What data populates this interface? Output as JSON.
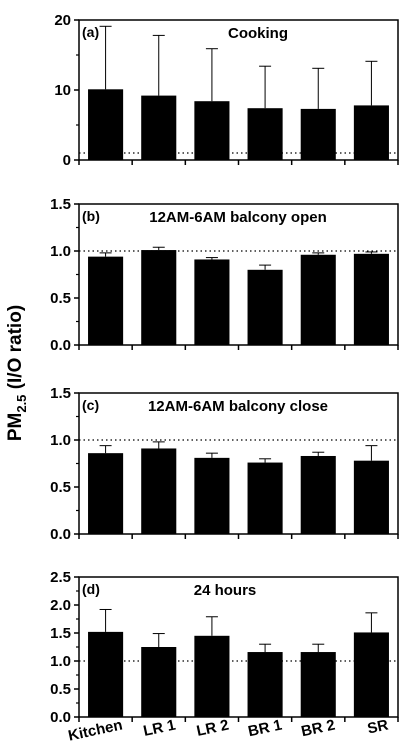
{
  "y_axis_label": {
    "prefix": "PM",
    "subscript": "2.5",
    "suffix": " (I/O ratio)"
  },
  "chart_data": [
    {
      "type": "bar",
      "panel_label": "(a)",
      "title": "Cooking",
      "categories": [
        "Kitchen",
        "LR 1",
        "LR 2",
        "BR 1",
        "BR 2",
        "SR"
      ],
      "values": [
        10.1,
        9.2,
        8.4,
        7.4,
        7.3,
        7.8
      ],
      "error_upper": [
        9.0,
        8.6,
        7.5,
        6.0,
        5.8,
        6.3
      ],
      "ylim": [
        0,
        20
      ],
      "yticks": [
        "0",
        "10",
        "20"
      ],
      "reference_line": 1
    },
    {
      "type": "bar",
      "panel_label": "(b)",
      "title": "12AM-6AM balcony open",
      "categories": [
        "Kitchen",
        "LR 1",
        "LR 2",
        "BR 1",
        "BR 2",
        "SR"
      ],
      "values": [
        0.94,
        1.01,
        0.91,
        0.8,
        0.96,
        0.97
      ],
      "error_upper": [
        0.04,
        0.03,
        0.02,
        0.05,
        0.02,
        0.02
      ],
      "ylim": [
        0,
        1.5
      ],
      "yticks": [
        "0.0",
        "0.5",
        "1.0",
        "1.5"
      ],
      "reference_line": 1
    },
    {
      "type": "bar",
      "panel_label": "(c)",
      "title": "12AM-6AM balcony close",
      "categories": [
        "Kitchen",
        "LR 1",
        "LR 2",
        "BR 1",
        "BR 2",
        "SR"
      ],
      "values": [
        0.86,
        0.91,
        0.81,
        0.76,
        0.83,
        0.78
      ],
      "error_upper": [
        0.08,
        0.07,
        0.05,
        0.04,
        0.04,
        0.16
      ],
      "ylim": [
        0,
        1.5
      ],
      "yticks": [
        "0.0",
        "0.5",
        "1.0",
        "1.5"
      ],
      "reference_line": 1
    },
    {
      "type": "bar",
      "panel_label": "(d)",
      "title": "24 hours",
      "categories": [
        "Kitchen",
        "LR 1",
        "LR 2",
        "BR 1",
        "BR 2",
        "SR"
      ],
      "values": [
        1.52,
        1.25,
        1.45,
        1.16,
        1.16,
        1.51
      ],
      "error_upper": [
        0.4,
        0.24,
        0.34,
        0.14,
        0.14,
        0.35
      ],
      "ylim": [
        0,
        2.5
      ],
      "yticks": [
        "0.0",
        "0.5",
        "1.0",
        "1.5",
        "2.0",
        "2.5"
      ],
      "reference_line": 1
    }
  ]
}
